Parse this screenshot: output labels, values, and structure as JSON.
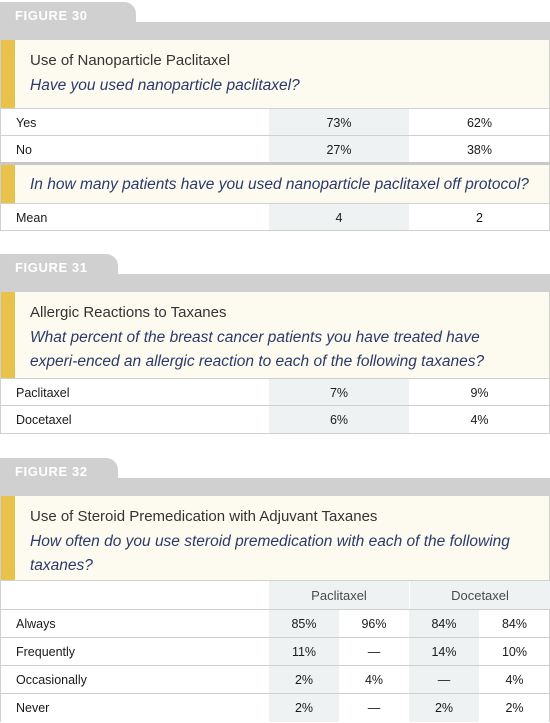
{
  "figure30": {
    "tab": "FIGURE 30",
    "title": "Use of Nanoparticle Paclitaxel",
    "question1": "Have you used nanoparticle paclitaxel?",
    "rows1": [
      {
        "label": "Yes",
        "a": "73%",
        "b": "62%"
      },
      {
        "label": "No",
        "a": "27%",
        "b": "38%"
      }
    ],
    "question2": "In how many patients have you used nanoparticle paclitaxel off protocol?",
    "rows2": [
      {
        "label": "Mean",
        "a": "4",
        "b": "2"
      }
    ]
  },
  "figure31": {
    "tab": "FIGURE 31",
    "title": "Allergic Reactions to Taxanes",
    "question": "What percent of the breast cancer patients you have treated have experi-enced an allergic reaction to each of the following taxanes?",
    "rows": [
      {
        "label": "Paclitaxel",
        "a": "7%",
        "b": "9%"
      },
      {
        "label": "Docetaxel",
        "a": "6%",
        "b": "4%"
      }
    ]
  },
  "figure32": {
    "tab": "FIGURE 32",
    "title": "Use of Steroid Premedication with Adjuvant Taxanes",
    "question": "How often do you use steroid premedication with each of the following taxanes?",
    "headers": [
      "Paclitaxel",
      "Docetaxel"
    ],
    "rows": [
      {
        "label": "Always",
        "v": [
          "85%",
          "96%",
          "84%",
          "84%"
        ]
      },
      {
        "label": "Frequently",
        "v": [
          "11%",
          "—",
          "14%",
          "10%"
        ]
      },
      {
        "label": "Occasionally",
        "v": [
          "2%",
          "4%",
          "—",
          "4%"
        ]
      },
      {
        "label": "Never",
        "v": [
          "2%",
          "—",
          "2%",
          "2%"
        ]
      }
    ]
  }
}
